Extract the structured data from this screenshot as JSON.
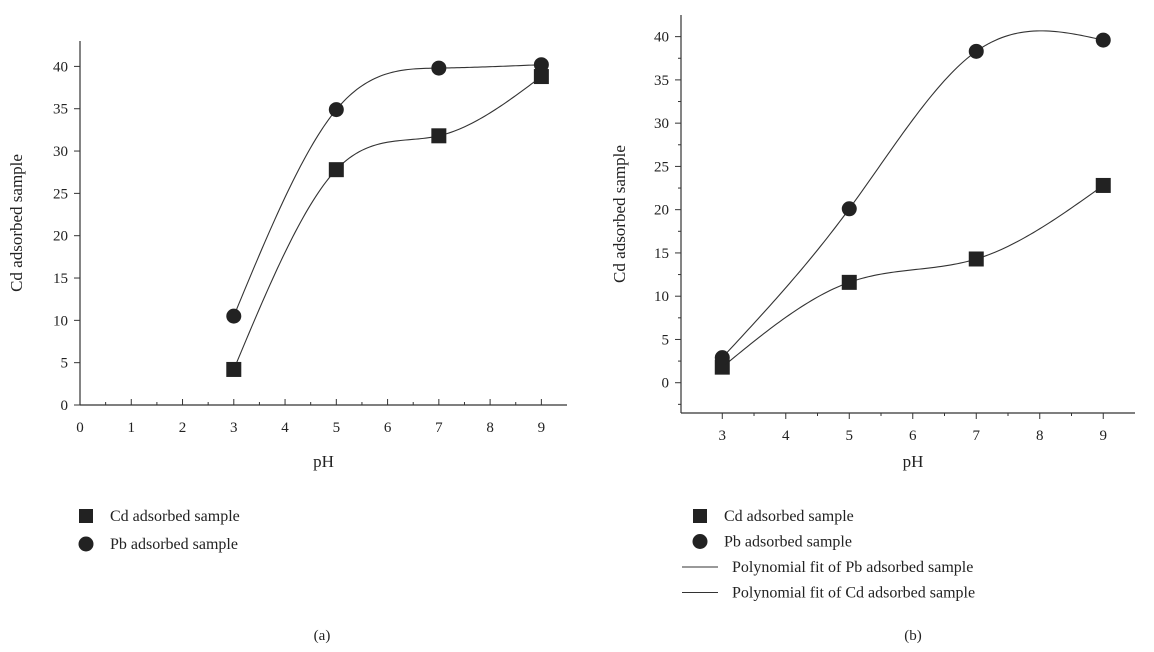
{
  "chart_data": [
    {
      "type": "scatter",
      "panel_label": "(a)",
      "xlabel": "pH",
      "ylabel": "Cd adsorbed sample",
      "xlim": [
        0,
        9.5
      ],
      "ylim": [
        0,
        43
      ],
      "xticks": [
        0,
        1,
        2,
        3,
        4,
        5,
        6,
        7,
        8,
        9
      ],
      "yticks": [
        0,
        5,
        10,
        15,
        20,
        25,
        30,
        35,
        40
      ],
      "grid": false,
      "legend_placement": "below",
      "series": [
        {
          "name": "Cd adsorbed sample",
          "marker": "square",
          "x": [
            3,
            5,
            7,
            9
          ],
          "y": [
            4.2,
            27.8,
            31.8,
            38.8
          ]
        },
        {
          "name": "Pb adsorbed sample",
          "marker": "circle",
          "x": [
            3,
            5,
            7,
            9
          ],
          "y": [
            10.5,
            34.9,
            39.8,
            40.2
          ]
        }
      ],
      "legend": [
        {
          "label": "Cd adsorbed sample",
          "marker": "square"
        },
        {
          "label": "Pb adsorbed sample",
          "marker": "circle"
        }
      ]
    },
    {
      "type": "scatter",
      "panel_label": "(b)",
      "xlabel": "pH",
      "ylabel": "Cd adsorbed sample",
      "xlim": [
        2.35,
        9.5
      ],
      "ylim": [
        -3.5,
        42.5
      ],
      "xticks": [
        3,
        4,
        5,
        6,
        7,
        8,
        9
      ],
      "yticks": [
        0,
        5,
        10,
        15,
        20,
        25,
        30,
        35,
        40
      ],
      "grid": false,
      "legend_placement": "below",
      "series": [
        {
          "name": "Cd adsorbed sample",
          "marker": "square",
          "x": [
            3,
            5,
            7,
            9
          ],
          "y": [
            1.8,
            11.6,
            14.3,
            22.8
          ]
        },
        {
          "name": "Pb adsorbed sample",
          "marker": "circle",
          "x": [
            3,
            5,
            7,
            9
          ],
          "y": [
            2.9,
            20.1,
            38.3,
            39.6
          ]
        }
      ],
      "legend": [
        {
          "label": "Cd adsorbed sample",
          "marker": "square"
        },
        {
          "label": "Pb adsorbed sample",
          "marker": "circle"
        },
        {
          "label": "Polynomial fit of Pb adsorbed sample",
          "marker": "line"
        },
        {
          "label": "Polynomial fit of Cd adsorbed sample",
          "marker": "line"
        }
      ]
    }
  ]
}
